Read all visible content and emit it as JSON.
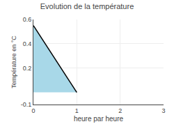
{
  "chart_data": {
    "type": "area",
    "title": "Evolution de la température",
    "x_label": "heure par heure",
    "y_label": "Température en °C",
    "x": [
      0,
      1
    ],
    "series": [
      {
        "type": "area",
        "color": "#a8d8e8",
        "values": [
          0.55,
          0.0
        ]
      },
      {
        "type": "line",
        "color": "#000000",
        "values": [
          0.55,
          0.0
        ]
      }
    ],
    "xlim": [
      0,
      3
    ],
    "xticks": [
      0,
      1,
      2,
      3
    ],
    "ylim": [
      -0.1,
      0.6
    ],
    "yticks": [
      -0.1,
      0.2,
      0.4,
      0.6
    ],
    "grid": true
  }
}
